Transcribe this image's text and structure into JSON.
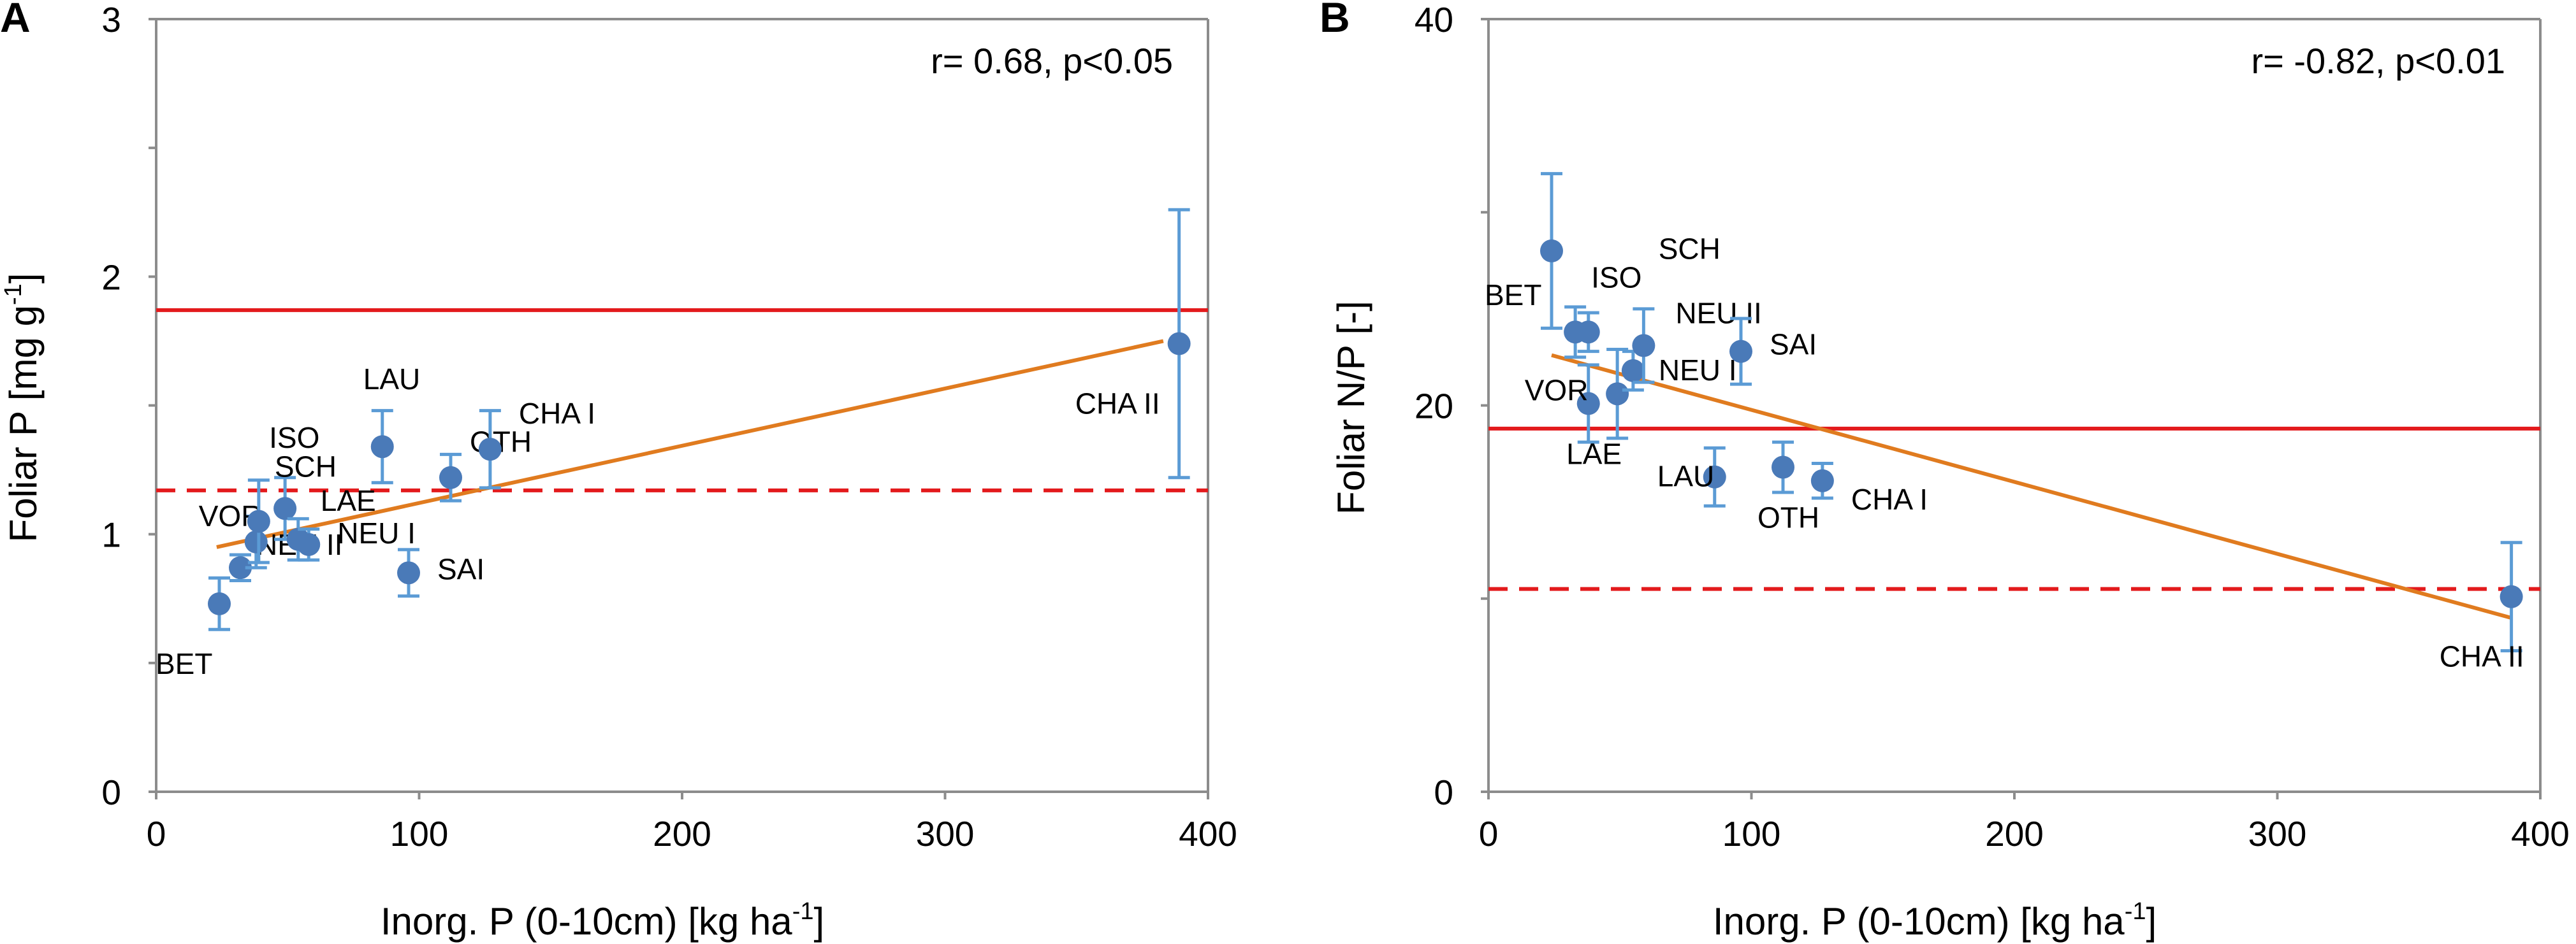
{
  "chart_data": [
    {
      "type": "scatter",
      "panel": "A",
      "annotation": "r= 0.68, p<0.05",
      "xlabel": "Inorg. P (0-10cm) [kg ha",
      "xlabel_sup": "-1",
      "xlabel_end": "]",
      "ylabel": "Foliar P [mg g",
      "ylabel_sup": "-1",
      "ylabel_end": "]",
      "xlim": [
        0,
        400
      ],
      "ylim": [
        0,
        3
      ],
      "xticks": [
        0,
        100,
        200,
        300,
        400
      ],
      "yticks": [
        0,
        1,
        2,
        3
      ],
      "yminor": [
        0.5,
        1.5,
        2.5
      ],
      "ref_solid": 1.87,
      "ref_dashed": 1.17,
      "trend": [
        [
          23,
          0.95
        ],
        [
          383,
          1.75
        ]
      ],
      "points": [
        {
          "label": "BET",
          "x": 24,
          "y": 0.73,
          "err": 0.1
        },
        {
          "label": "NEU II",
          "x": 32,
          "y": 0.87,
          "err": 0.05
        },
        {
          "label": "VOR",
          "x": 38,
          "y": 0.97,
          "err": 0.1
        },
        {
          "label": "ISO",
          "x": 49,
          "y": 1.1,
          "err": 0.12
        },
        {
          "label": "LAE",
          "x": 54,
          "y": 0.98,
          "err": 0.08
        },
        {
          "label": "NEU I",
          "x": 58,
          "y": 0.96,
          "err": 0.06
        },
        {
          "label": "SCH",
          "x": 39,
          "y": 1.05,
          "err": 0.16
        },
        {
          "label": "LAU",
          "x": 86,
          "y": 1.34,
          "err": 0.14
        },
        {
          "label": "SAI",
          "x": 96,
          "y": 0.85,
          "err": 0.09
        },
        {
          "label": "OTH",
          "x": 112,
          "y": 1.22,
          "err": 0.09
        },
        {
          "label": "CHA I",
          "x": 127,
          "y": 1.33,
          "err": 0.15
        },
        {
          "label": "CHA II",
          "x": 389,
          "y": 1.74,
          "err": 0.52
        }
      ]
    },
    {
      "type": "scatter",
      "panel": "B",
      "annotation": "r= -0.82, p<0.01",
      "xlabel": "Inorg. P (0-10cm) [kg ha",
      "xlabel_sup": "-1",
      "xlabel_end": "]",
      "ylabel": "Foliar N/P [-]",
      "xlim": [
        0,
        400
      ],
      "ylim": [
        0,
        40
      ],
      "xticks": [
        0,
        100,
        200,
        300,
        400
      ],
      "yticks": [
        0,
        20,
        40
      ],
      "yminor": [
        10,
        30
      ],
      "ref_solid": 18.8,
      "ref_dashed": 10.5,
      "trend": [
        [
          24,
          22.6
        ],
        [
          389,
          9.0
        ]
      ],
      "points": [
        {
          "label": "BET",
          "x": 24,
          "y": 28.0,
          "err": 4.0
        },
        {
          "label": "ISO",
          "x": 33,
          "y": 23.8,
          "err": 1.3
        },
        {
          "label": "SCH",
          "x": 38,
          "y": 23.8,
          "err": 1.0
        },
        {
          "label": "VOR",
          "x": 38,
          "y": 20.1,
          "err": 2.0
        },
        {
          "label": "LAE",
          "x": 49,
          "y": 20.6,
          "err": 2.3
        },
        {
          "label": "NEU I",
          "x": 55,
          "y": 21.8,
          "err": 1.0
        },
        {
          "label": "NEU II",
          "x": 59,
          "y": 23.1,
          "err": 1.9
        },
        {
          "label": "SAI",
          "x": 96,
          "y": 22.8,
          "err": 1.7
        },
        {
          "label": "LAU",
          "x": 86,
          "y": 16.3,
          "err": 1.5
        },
        {
          "label": "OTH",
          "x": 112,
          "y": 16.8,
          "err": 1.3
        },
        {
          "label": "CHA I",
          "x": 127,
          "y": 16.1,
          "err": 0.9
        },
        {
          "label": "CHA II",
          "x": 389,
          "y": 10.1,
          "err": 2.8
        }
      ]
    }
  ],
  "colors": {
    "point": "#4a7ab8",
    "errorbar": "#5b9bd5",
    "trend": "#e07b1f",
    "ref_line": "#e31a1c",
    "axis": "#8c8c8c"
  }
}
